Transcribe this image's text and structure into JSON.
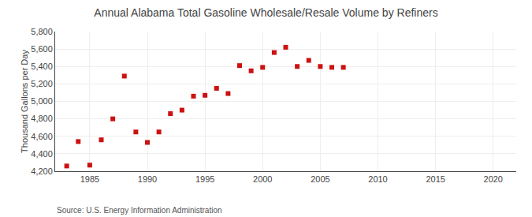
{
  "chart_data": {
    "type": "scatter",
    "title": "Annual Alabama Total Gasoline Wholesale/Resale Volume by Refiners",
    "ylabel": "Thousand Gallons per Day",
    "source": "Source: U.S. Energy Information Administration",
    "x": [
      1983,
      1984,
      1985,
      1986,
      1987,
      1988,
      1989,
      1990,
      1991,
      1992,
      1993,
      1994,
      1995,
      1996,
      1997,
      1998,
      1999,
      2000,
      2001,
      2002,
      2003,
      2004,
      2005,
      2006,
      2007
    ],
    "values": [
      4260,
      4540,
      4270,
      4560,
      4800,
      5290,
      4650,
      4530,
      4650,
      4860,
      4900,
      5060,
      5070,
      5150,
      5090,
      5410,
      5350,
      5390,
      5560,
      5620,
      5400,
      5470,
      5400,
      5390,
      5390
    ],
    "color": "#cc1111",
    "marker": "square",
    "xlim": [
      1982,
      2022
    ],
    "xticks": [
      1985,
      1990,
      1995,
      2000,
      2005,
      2010,
      2015,
      2020
    ],
    "ylim": [
      4200,
      5800
    ],
    "yticks": [
      {
        "value": 4200,
        "label": "4,200"
      },
      {
        "value": 4400,
        "label": "4,400"
      },
      {
        "value": 4600,
        "label": "4,600"
      },
      {
        "value": 4800,
        "label": "4,800"
      },
      {
        "value": 5000,
        "label": "5,000"
      },
      {
        "value": 5200,
        "label": "5,200"
      },
      {
        "value": 5400,
        "label": "5,400"
      },
      {
        "value": 5600,
        "label": "5,600"
      },
      {
        "value": 5800,
        "label": "5,800"
      }
    ],
    "grid": true
  }
}
